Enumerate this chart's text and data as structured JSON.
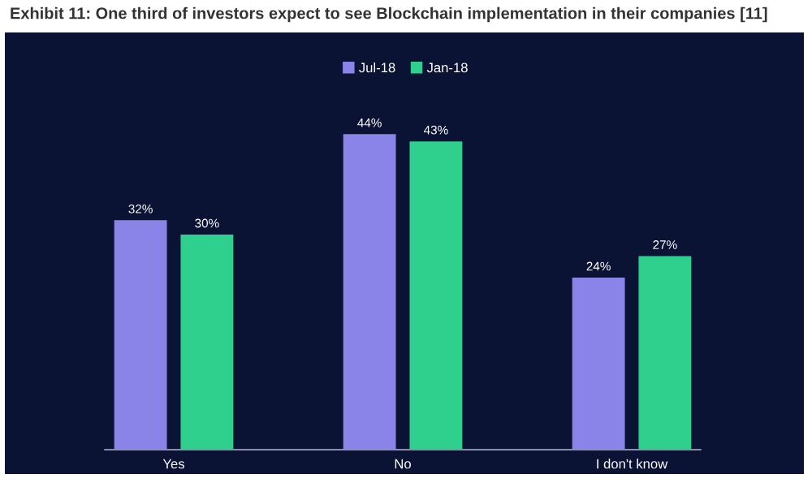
{
  "chart_data": {
    "type": "bar",
    "title": "Exhibit 11: One third of investors expect to see Blockchain implementation in their companies [11]",
    "categories": [
      "Yes",
      "No",
      "I don't know"
    ],
    "series": [
      {
        "name": "Jul-18",
        "color": "#8b84e8",
        "values": [
          32,
          44,
          24
        ],
        "value_labels": [
          "32%",
          "44%",
          "24%"
        ]
      },
      {
        "name": "Jan-18",
        "color": "#2fcf8e",
        "values": [
          30,
          43,
          27
        ],
        "value_labels": [
          "30%",
          "43%",
          "27%"
        ]
      }
    ],
    "legend": "top"
  }
}
